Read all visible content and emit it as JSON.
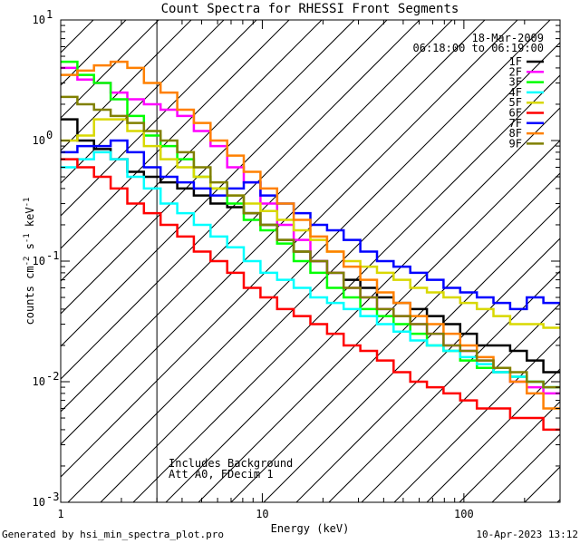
{
  "chart_data": {
    "type": "line",
    "title": "Count Spectra for RHESSI Front Segments",
    "xlabel": "Energy (keV)",
    "ylabel_parts": [
      "counts cm",
      "-2",
      " s",
      "-1",
      " keV",
      "-1"
    ],
    "xscale": "log",
    "yscale": "log",
    "xlim": [
      1,
      300
    ],
    "ylim": [
      0.001,
      10
    ],
    "x_tick_labels": [
      {
        "value": 1,
        "label": "1"
      },
      {
        "value": 10,
        "label": "10"
      },
      {
        "value": 100,
        "label": "100"
      }
    ],
    "y_tick_labels": [
      {
        "value": 10,
        "base": "10",
        "exp": "1"
      },
      {
        "value": 1,
        "base": "10",
        "exp": "0"
      },
      {
        "value": 0.1,
        "base": "10",
        "exp": "-1"
      },
      {
        "value": 0.01,
        "base": "10",
        "exp": "-2"
      },
      {
        "value": 0.001,
        "base": "10",
        "exp": "-3"
      }
    ],
    "date": "18-Mar-2009",
    "time_range": "06:18:00 to 06:19:00",
    "annotation_lines": [
      "Includes Background",
      "Att A0, FDecim 1"
    ],
    "background_hatch_xmax": 3,
    "legend_position": "top-right",
    "series": [
      {
        "name": "1F",
        "color": "#000000",
        "values": [
          1.5,
          1.0,
          0.85,
          0.7,
          0.55,
          0.5,
          0.45,
          0.4,
          0.35,
          0.3,
          0.28,
          0.25,
          0.2,
          0.15,
          0.12,
          0.1,
          0.08,
          0.07,
          0.06,
          0.05,
          0.045,
          0.04,
          0.035,
          0.03,
          0.025,
          0.02,
          0.02,
          0.018,
          0.015,
          0.012
        ]
      },
      {
        "name": "2F",
        "color": "#ff00ff",
        "values": [
          4.0,
          3.2,
          3.0,
          2.5,
          2.2,
          2.0,
          1.8,
          1.6,
          1.2,
          0.9,
          0.6,
          0.45,
          0.3,
          0.2,
          0.15,
          0.1,
          0.08,
          0.06,
          0.05,
          0.04,
          0.035,
          0.03,
          0.025,
          0.02,
          0.018,
          0.015,
          0.012,
          0.01,
          0.009,
          0.008
        ]
      },
      {
        "name": "3F",
        "color": "#00ff00",
        "values": [
          4.5,
          3.5,
          3.0,
          2.2,
          1.6,
          1.1,
          0.9,
          0.7,
          0.5,
          0.4,
          0.3,
          0.22,
          0.18,
          0.14,
          0.1,
          0.08,
          0.06,
          0.05,
          0.04,
          0.035,
          0.03,
          0.025,
          0.02,
          0.018,
          0.015,
          0.013,
          0.012,
          0.011,
          0.01,
          0.009
        ]
      },
      {
        "name": "4F",
        "color": "#00ffff",
        "values": [
          0.6,
          0.7,
          0.8,
          0.7,
          0.5,
          0.4,
          0.3,
          0.25,
          0.2,
          0.16,
          0.13,
          0.1,
          0.08,
          0.07,
          0.06,
          0.05,
          0.045,
          0.04,
          0.035,
          0.03,
          0.026,
          0.022,
          0.02,
          0.018,
          0.016,
          0.014,
          0.012,
          0.011,
          0.01,
          0.009
        ]
      },
      {
        "name": "5F",
        "color": "#d8d800",
        "values": [
          1.0,
          1.1,
          1.5,
          1.5,
          1.2,
          0.9,
          0.7,
          0.6,
          0.5,
          0.4,
          0.35,
          0.3,
          0.26,
          0.22,
          0.18,
          0.15,
          0.12,
          0.1,
          0.09,
          0.08,
          0.07,
          0.06,
          0.055,
          0.05,
          0.045,
          0.04,
          0.035,
          0.03,
          0.03,
          0.028
        ]
      },
      {
        "name": "6F",
        "color": "#ff0000",
        "values": [
          0.7,
          0.6,
          0.5,
          0.4,
          0.3,
          0.25,
          0.2,
          0.16,
          0.12,
          0.1,
          0.08,
          0.06,
          0.05,
          0.04,
          0.035,
          0.03,
          0.025,
          0.02,
          0.018,
          0.015,
          0.012,
          0.01,
          0.009,
          0.008,
          0.007,
          0.006,
          0.006,
          0.005,
          0.005,
          0.004
        ]
      },
      {
        "name": "7F",
        "color": "#0000ff",
        "values": [
          0.8,
          0.9,
          0.9,
          1.0,
          0.8,
          0.6,
          0.5,
          0.45,
          0.4,
          0.35,
          0.4,
          0.45,
          0.35,
          0.3,
          0.25,
          0.2,
          0.18,
          0.15,
          0.12,
          0.1,
          0.09,
          0.08,
          0.07,
          0.06,
          0.055,
          0.05,
          0.045,
          0.04,
          0.05,
          0.045
        ]
      },
      {
        "name": "8F",
        "color": "#ff8000",
        "values": [
          3.5,
          3.8,
          4.2,
          4.5,
          4.0,
          3.0,
          2.5,
          1.8,
          1.4,
          1.0,
          0.75,
          0.55,
          0.4,
          0.3,
          0.22,
          0.16,
          0.12,
          0.09,
          0.07,
          0.055,
          0.045,
          0.035,
          0.03,
          0.025,
          0.02,
          0.016,
          0.013,
          0.01,
          0.008,
          0.006
        ]
      },
      {
        "name": "9F",
        "color": "#808000",
        "values": [
          2.3,
          2.0,
          1.8,
          1.6,
          1.4,
          1.2,
          1.0,
          0.8,
          0.6,
          0.45,
          0.35,
          0.25,
          0.2,
          0.15,
          0.12,
          0.1,
          0.08,
          0.06,
          0.05,
          0.04,
          0.035,
          0.03,
          0.025,
          0.02,
          0.018,
          0.015,
          0.013,
          0.012,
          0.01,
          0.009
        ]
      }
    ]
  },
  "footer": {
    "generated_by": "Generated by hsi_min_spectra_plot.pro",
    "timestamp": "10-Apr-2023 13:12"
  }
}
